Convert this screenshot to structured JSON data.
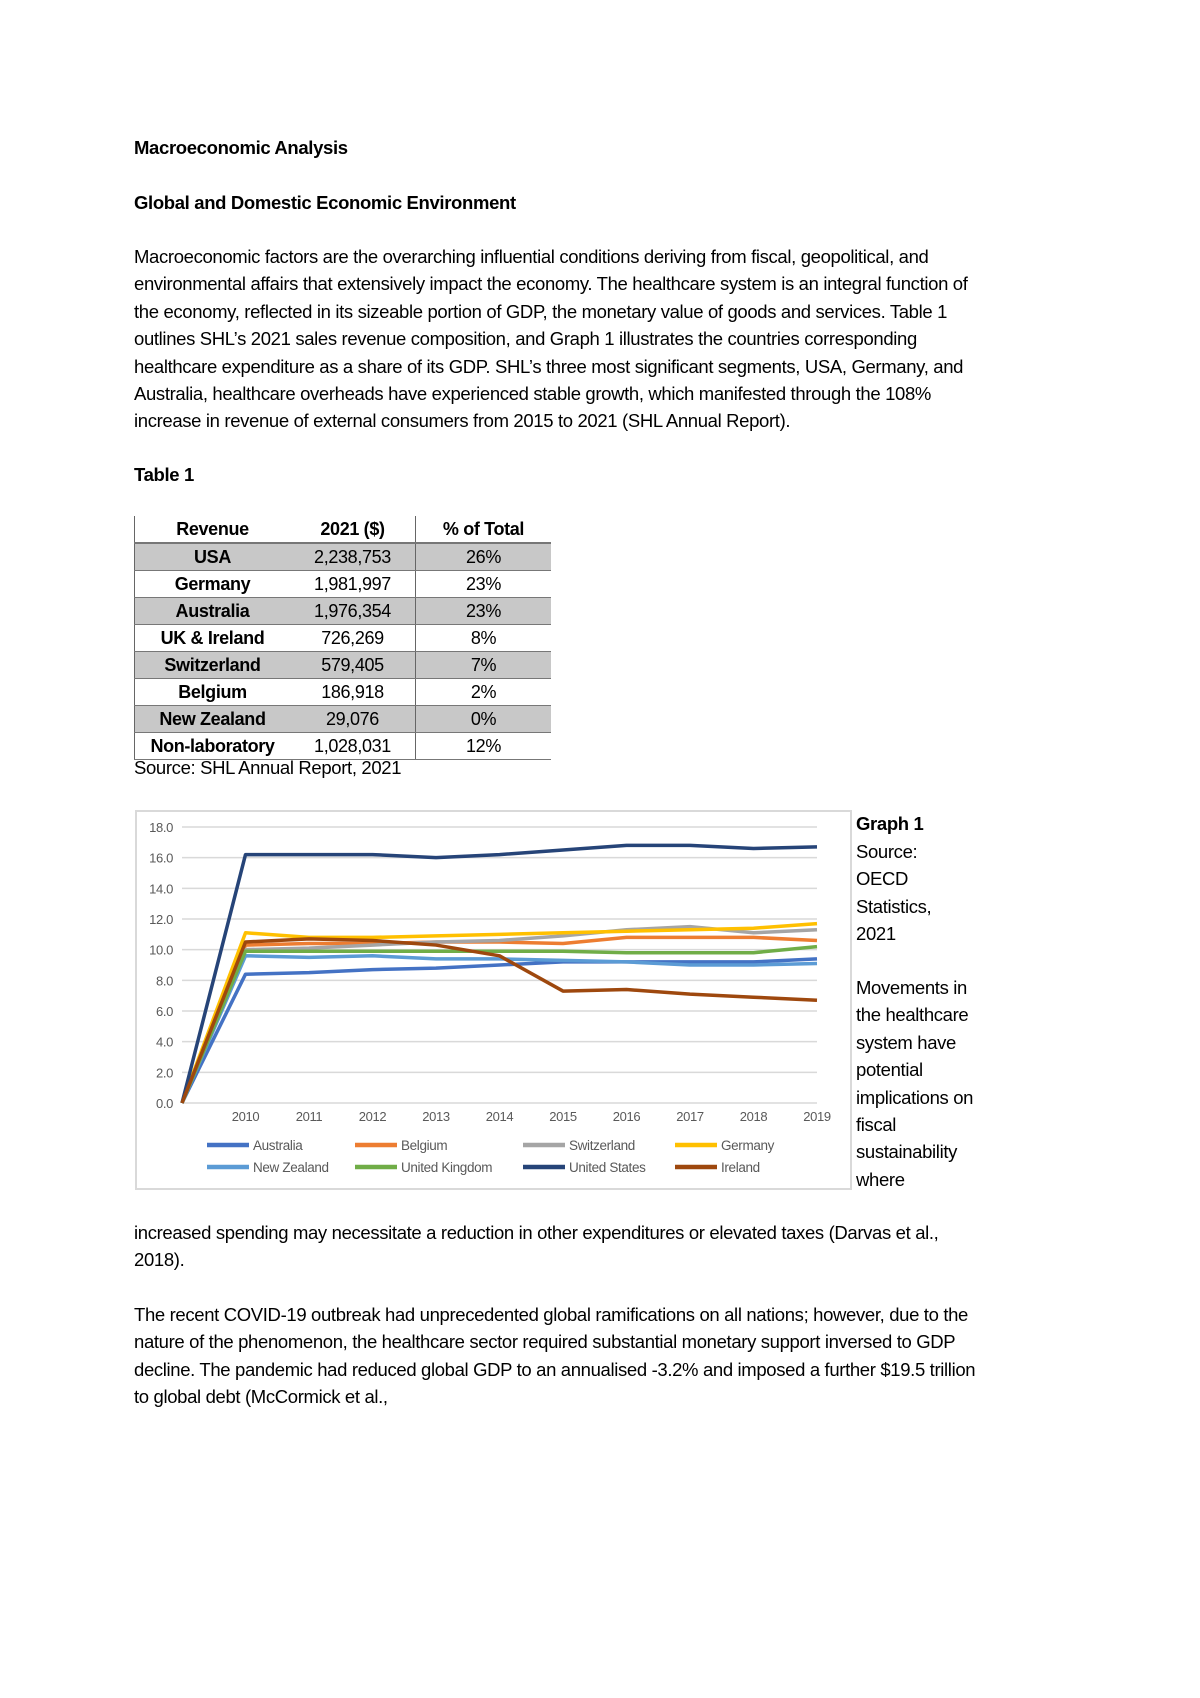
{
  "title": "Macroeconomic Analysis",
  "heading": "Global and Domestic Economic Environment",
  "paragraph1": "Macroeconomic factors are the overarching influential conditions deriving from fiscal, geopolitical, and environmental affairs that extensively impact the economy. The healthcare system is an integral function of the economy, reflected in its sizeable portion of GDP, the monetary value of goods and services. Table 1 outlines SHL’s 2021 sales revenue composition, and Graph 1 illustrates the countries corresponding healthcare expenditure as a share of its GDP. SHL’s three most significant segments, USA, Germany, and Australia, healthcare overheads have experienced stable growth, which manifested through the 108% increase in revenue of external consumers from 2015 to 2021 (SHL Annual Report).",
  "table_label": "Table 1",
  "table": {
    "headers": [
      "Revenue",
      "2021 ($)",
      "% of Total"
    ],
    "rows": [
      [
        "USA",
        "2,238,753",
        "26%"
      ],
      [
        "Germany",
        "1,981,997",
        "23%"
      ],
      [
        "Australia",
        "1,976,354",
        "23%"
      ],
      [
        "UK & Ireland",
        "726,269",
        "8%"
      ],
      [
        "Switzerland",
        "579,405",
        "7%"
      ],
      [
        "Belgium",
        "186,918",
        "2%"
      ],
      [
        "New Zealand",
        "29,076",
        "0%"
      ],
      [
        "Non-laboratory",
        "1,028,031",
        "12%"
      ]
    ],
    "source": "Source: SHL Annual Report, 2021"
  },
  "graph_label": "Graph 1",
  "graph_source": "Source: OECD Statistics, 2021",
  "paragraph2_side": "Movements in the healthcare system have potential implications on fiscal sustainability where",
  "paragraph2_rest": "increased spending may necessitate a reduction in other expenditures or elevated taxes (Darvas et al., 2018).",
  "paragraph3": "The recent COVID-19 outbreak had unprecedented global ramifications on all nations; however, due to the nature of the phenomenon, the healthcare sector required substantial monetary support inversed to GDP decline. The pandemic had reduced global GDP to an annualised -3.2% and imposed a further $19.5 trillion to global debt (McCormick et al.,",
  "chart_data": {
    "type": "line",
    "categories": [
      "",
      "2010",
      "2011",
      "2012",
      "2013",
      "2014",
      "2015",
      "2016",
      "2017",
      "2018",
      "2019"
    ],
    "ylim": [
      0,
      18
    ],
    "yticks": [
      "0.0",
      "2.0",
      "4.0",
      "6.0",
      "8.0",
      "10.0",
      "12.0",
      "14.0",
      "16.0",
      "18.0"
    ],
    "grid": true,
    "legend_position": "bottom",
    "series": [
      {
        "name": "Australia",
        "color": "#4472c4",
        "values": [
          0,
          8.4,
          8.5,
          8.7,
          8.8,
          9.0,
          9.2,
          9.2,
          9.2,
          9.2,
          9.4
        ]
      },
      {
        "name": "Belgium",
        "color": "#ed7d31",
        "values": [
          0,
          10.3,
          10.4,
          10.4,
          10.5,
          10.5,
          10.4,
          10.8,
          10.8,
          10.8,
          10.6
        ]
      },
      {
        "name": "Switzerland",
        "color": "#a5a5a5",
        "values": [
          0,
          10.0,
          10.1,
          10.3,
          10.5,
          10.6,
          10.9,
          11.3,
          11.5,
          11.1,
          11.3
        ]
      },
      {
        "name": "Germany",
        "color": "#ffc000",
        "values": [
          0,
          11.1,
          10.8,
          10.8,
          10.9,
          11.0,
          11.1,
          11.2,
          11.3,
          11.4,
          11.7
        ]
      },
      {
        "name": "New Zealand",
        "color": "#5b9bd5",
        "values": [
          0,
          9.6,
          9.5,
          9.6,
          9.4,
          9.4,
          9.3,
          9.2,
          9.0,
          9.0,
          9.1
        ]
      },
      {
        "name": "United Kingdom",
        "color": "#70ad47",
        "values": [
          0,
          9.9,
          9.9,
          9.9,
          9.9,
          9.9,
          9.9,
          9.8,
          9.8,
          9.8,
          10.2
        ]
      },
      {
        "name": "United States",
        "color": "#264478",
        "values": [
          0,
          16.2,
          16.2,
          16.2,
          16.0,
          16.2,
          16.5,
          16.8,
          16.8,
          16.6,
          16.7
        ]
      },
      {
        "name": "Ireland",
        "color": "#9e480e",
        "values": [
          0,
          10.5,
          10.7,
          10.6,
          10.3,
          9.6,
          7.3,
          7.4,
          7.1,
          6.9,
          6.7
        ]
      }
    ]
  }
}
